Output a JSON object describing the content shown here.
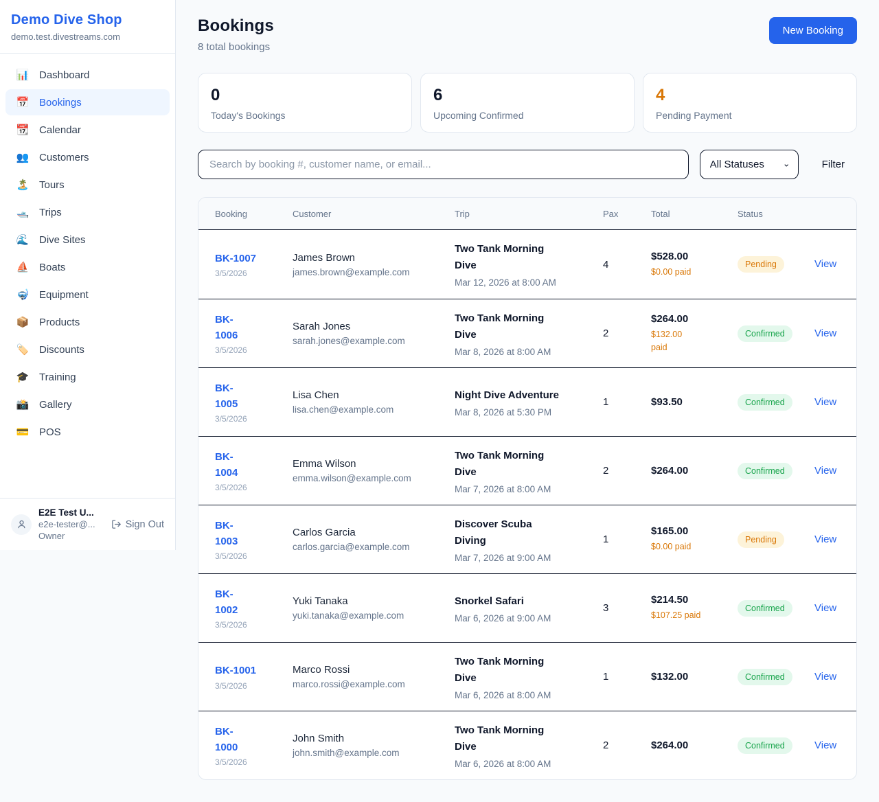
{
  "brand": {
    "name": "Demo Dive Shop",
    "domain": "demo.test.divestreams.com"
  },
  "sidebar": {
    "items": [
      {
        "name": "dashboard",
        "icon": "📊",
        "label": "Dashboard",
        "active": false
      },
      {
        "name": "bookings",
        "icon": "📅",
        "label": "Bookings",
        "active": true
      },
      {
        "name": "calendar",
        "icon": "📆",
        "label": "Calendar",
        "active": false
      },
      {
        "name": "customers",
        "icon": "👥",
        "label": "Customers",
        "active": false
      },
      {
        "name": "tours",
        "icon": "🏝️",
        "label": "Tours",
        "active": false
      },
      {
        "name": "trips",
        "icon": "🛥️",
        "label": "Trips",
        "active": false
      },
      {
        "name": "dive-sites",
        "icon": "🌊",
        "label": "Dive Sites",
        "active": false
      },
      {
        "name": "boats",
        "icon": "⛵",
        "label": "Boats",
        "active": false
      },
      {
        "name": "equipment",
        "icon": "🤿",
        "label": "Equipment",
        "active": false
      },
      {
        "name": "products",
        "icon": "📦",
        "label": "Products",
        "active": false
      },
      {
        "name": "discounts",
        "icon": "🏷️",
        "label": "Discounts",
        "active": false
      },
      {
        "name": "training",
        "icon": "🎓",
        "label": "Training",
        "active": false
      },
      {
        "name": "gallery",
        "icon": "📸",
        "label": "Gallery",
        "active": false
      },
      {
        "name": "pos",
        "icon": "💳",
        "label": "POS",
        "active": false
      }
    ]
  },
  "user": {
    "name": "E2E Test U...",
    "email": "e2e-tester@...",
    "role": "Owner",
    "sign_out_label": "Sign Out"
  },
  "header": {
    "title": "Bookings",
    "subtitle": "8 total bookings",
    "new_booking_label": "New Booking"
  },
  "stats": [
    {
      "value": "0",
      "label": "Today's Bookings",
      "color": "#0f172a"
    },
    {
      "value": "6",
      "label": "Upcoming Confirmed",
      "color": "#0f172a"
    },
    {
      "value": "4",
      "label": "Pending Payment",
      "color": "#d97706"
    }
  ],
  "filters": {
    "search_placeholder": "Search by booking #, customer name, or email...",
    "status_selected": "All Statuses",
    "filter_label": "Filter"
  },
  "table": {
    "columns": [
      "Booking",
      "Customer",
      "Trip",
      "Pax",
      "Total",
      "Status"
    ],
    "view_label": "View",
    "rows": [
      {
        "id": "BK-1007",
        "date": "3/5/2026",
        "customer": "James Brown",
        "email": "james.brown@example.com",
        "trip": "Two Tank Morning\nDive",
        "trip_date": "Mar 12, 2026 at 8:00 AM",
        "pax": "4",
        "total": "$528.00",
        "paid": "$0.00 paid",
        "status": "Pending"
      },
      {
        "id": "BK-\n1006",
        "date": "3/5/2026",
        "customer": "Sarah Jones",
        "email": "sarah.jones@example.com",
        "trip": "Two Tank Morning\nDive",
        "trip_date": "Mar 8, 2026 at 8:00 AM",
        "pax": "2",
        "total": "$264.00",
        "paid": "$132.00\npaid",
        "status": "Confirmed"
      },
      {
        "id": "BK-\n1005",
        "date": "3/5/2026",
        "customer": "Lisa Chen",
        "email": "lisa.chen@example.com",
        "trip": "Night Dive Adventure",
        "trip_date": "Mar 8, 2026 at 5:30 PM",
        "pax": "1",
        "total": "$93.50",
        "paid": "",
        "status": "Confirmed"
      },
      {
        "id": "BK-\n1004",
        "date": "3/5/2026",
        "customer": "Emma Wilson",
        "email": "emma.wilson@example.com",
        "trip": "Two Tank Morning\nDive",
        "trip_date": "Mar 7, 2026 at 8:00 AM",
        "pax": "2",
        "total": "$264.00",
        "paid": "",
        "status": "Confirmed"
      },
      {
        "id": "BK-\n1003",
        "date": "3/5/2026",
        "customer": "Carlos Garcia",
        "email": "carlos.garcia@example.com",
        "trip": "Discover Scuba\nDiving",
        "trip_date": "Mar 7, 2026 at 9:00 AM",
        "pax": "1",
        "total": "$165.00",
        "paid": "$0.00 paid",
        "status": "Pending"
      },
      {
        "id": "BK-\n1002",
        "date": "3/5/2026",
        "customer": "Yuki Tanaka",
        "email": "yuki.tanaka@example.com",
        "trip": "Snorkel Safari",
        "trip_date": "Mar 6, 2026 at 9:00 AM",
        "pax": "3",
        "total": "$214.50",
        "paid": "$107.25 paid",
        "status": "Confirmed"
      },
      {
        "id": "BK-1001",
        "date": "3/5/2026",
        "customer": "Marco Rossi",
        "email": "marco.rossi@example.com",
        "trip": "Two Tank Morning\nDive",
        "trip_date": "Mar 6, 2026 at 8:00 AM",
        "pax": "1",
        "total": "$132.00",
        "paid": "",
        "status": "Confirmed"
      },
      {
        "id": "BK-\n1000",
        "date": "3/5/2026",
        "customer": "John Smith",
        "email": "john.smith@example.com",
        "trip": "Two Tank Morning\nDive",
        "trip_date": "Mar 6, 2026 at 8:00 AM",
        "pax": "2",
        "total": "$264.00",
        "paid": "",
        "status": "Confirmed"
      }
    ]
  },
  "colors": {
    "accent_blue": "#2563eb",
    "pending_text": "#d97706",
    "pending_bg": "#fdf3d9",
    "confirmed_text": "#16a34a",
    "confirmed_bg": "#e3f8ec"
  }
}
